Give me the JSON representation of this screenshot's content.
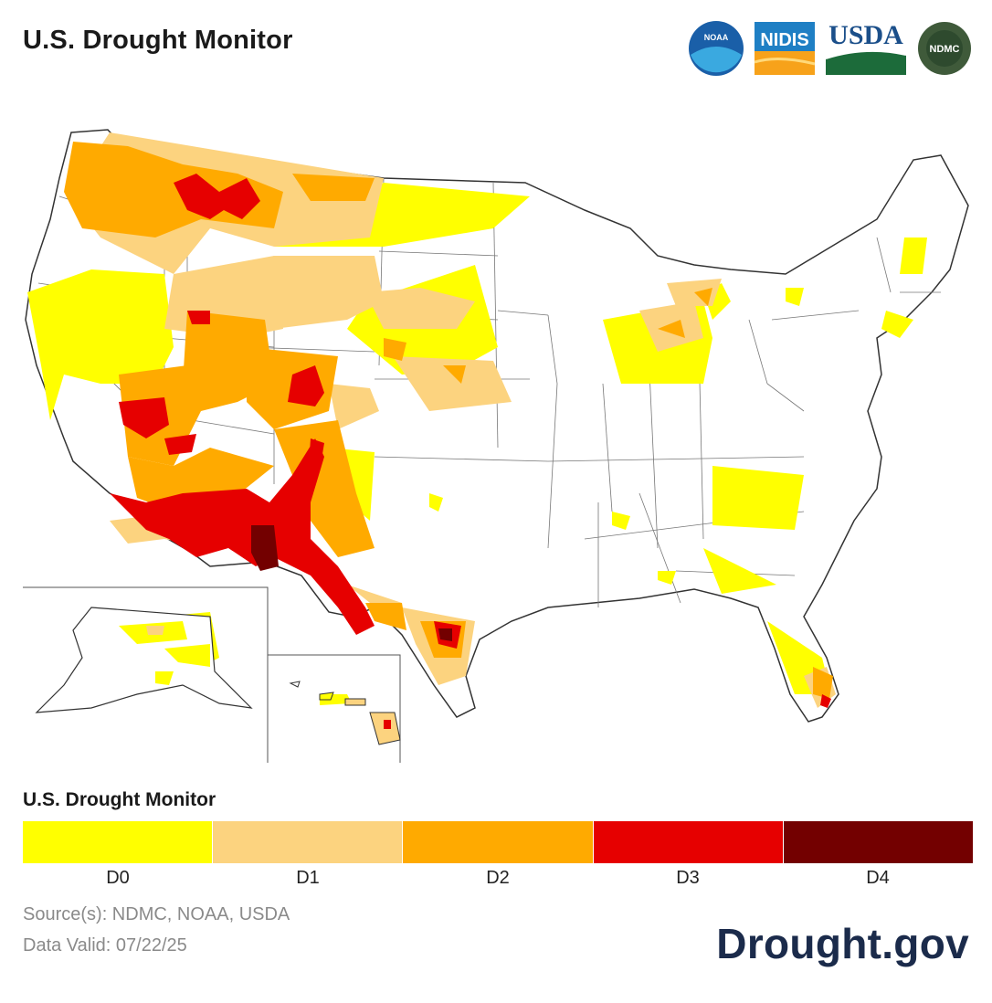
{
  "header": {
    "title": "U.S. Drought Monitor"
  },
  "logos": {
    "noaa": "NOAA",
    "nidis": "NIDIS",
    "usda": "USDA",
    "ndmc": "NDMC"
  },
  "legend": {
    "title": "U.S. Drought Monitor",
    "categories": [
      {
        "label": "D0",
        "color": "#ffff00"
      },
      {
        "label": "D1",
        "color": "#fcd37f"
      },
      {
        "label": "D2",
        "color": "#ffaa00"
      },
      {
        "label": "D3",
        "color": "#e60000"
      },
      {
        "label": "D4",
        "color": "#730000"
      }
    ]
  },
  "footer": {
    "source": "Source(s): NDMC, NOAA, USDA",
    "valid": "Data Valid: 07/22/25",
    "brand": "Drought.gov"
  }
}
